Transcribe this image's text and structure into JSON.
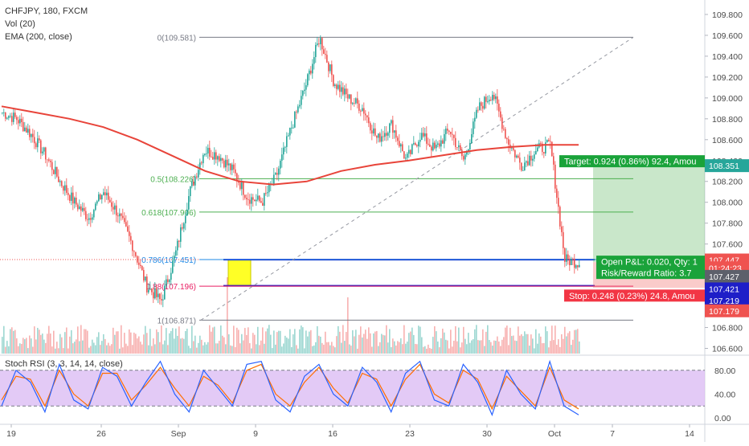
{
  "legend": {
    "title": "CHFJPY, 180, FXCM",
    "vol": "Vol (20)",
    "ema": "EMA (200, close)",
    "rsi": "Stoch RSI (3, 3, 14, 14, close)"
  },
  "colors": {
    "up": "#26a69a",
    "down": "#ef5350",
    "ema": "#e8443a",
    "fib_green": "#4caf50",
    "fib_red": "#e91e63",
    "fib_gray": "#787b86",
    "blue": "#1e1ec8",
    "rsi_band": "#d9b8f3",
    "rsi_k": "#2962ff",
    "rsi_d": "#ff6d00"
  },
  "price_axis": {
    "ticks": [
      "109.800",
      "109.600",
      "109.400",
      "109.200",
      "109.000",
      "108.800",
      "108.600",
      "108.400",
      "108.200",
      "108.000",
      "107.800",
      "107.600",
      "107.400",
      "107.200",
      "107.000",
      "106.800",
      "106.600"
    ],
    "labels": [
      {
        "text": "108.351",
        "bg": "#26a69a",
        "price": 108.351
      },
      {
        "text": "107.447",
        "bg": "#ef5350",
        "price": 107.447
      },
      {
        "text": "01:24:23",
        "bg": "#ef5350",
        "price": 107.372
      },
      {
        "text": "107.427",
        "bg": "#5d606b",
        "price": 107.29
      },
      {
        "text": "107.421",
        "bg": "#1e1ec8",
        "price": 107.17
      },
      {
        "text": "107.219",
        "bg": "#1e1ec8",
        "price": 107.06
      },
      {
        "text": "107.179",
        "bg": "#ef5350",
        "price": 106.96
      }
    ]
  },
  "rsi_axis": {
    "ticks": [
      "80.00",
      "40.00",
      "0.00"
    ]
  },
  "time_axis": {
    "ticks": [
      {
        "label": "19",
        "bar": 6
      },
      {
        "label": "26",
        "bar": 62
      },
      {
        "label": "Sep",
        "bar": 110
      },
      {
        "label": "9",
        "bar": 158
      },
      {
        "label": "16",
        "bar": 206
      },
      {
        "label": "23",
        "bar": 254
      },
      {
        "label": "30",
        "bar": 302
      },
      {
        "label": "Oct",
        "bar": 344
      },
      {
        "label": "7",
        "bar": 380
      },
      {
        "label": "14",
        "bar": 428
      }
    ]
  },
  "fib": [
    {
      "label": "0(109.581)",
      "price": 109.581,
      "color": "#787b86"
    },
    {
      "label": "0.5(108.226)",
      "price": 108.226,
      "color": "#4caf50"
    },
    {
      "label": "0.618(107.906)",
      "price": 107.906,
      "color": "#4caf50"
    },
    {
      "label": "0.786(107.451)",
      "price": 107.451,
      "color": "#1e88e5"
    },
    {
      "label": "0.88(107.196)",
      "price": 107.196,
      "color": "#e91e63"
    },
    {
      "label": "1(106.871)",
      "price": 106.871,
      "color": "#787b86"
    }
  ],
  "position": {
    "target_label": "Target: 0.924 (0.86%) 92.4, Amou",
    "pnl_label": "Open P&L: 0.020, Qty: 1",
    "rr_label": "Risk/Reward Ratio: 3.7",
    "stop_label": "Stop: 0.248 (0.23%) 24.8, Amou",
    "entry": 107.427,
    "target": 108.351,
    "stop": 107.179
  },
  "chart_data": {
    "type": "line",
    "title": "CHFJPY, 180, FXCM",
    "ylim": [
      106.55,
      109.9
    ],
    "series": [
      {
        "name": "EMA (200, close)",
        "values": [
          108.92,
          108.86,
          108.8,
          108.72,
          108.6,
          108.45,
          108.3,
          108.2,
          108.17,
          108.2,
          108.3,
          108.36,
          108.4,
          108.45,
          108.5,
          108.53,
          108.55,
          108.55
        ]
      }
    ],
    "price_path": [
      108.86,
      108.8,
      108.65,
      108.45,
      108.2,
      108.0,
      107.85,
      108.1,
      107.9,
      107.6,
      107.2,
      107.05,
      107.5,
      108.1,
      108.5,
      108.45,
      108.3,
      108.05,
      108.0,
      108.25,
      108.7,
      109.1,
      109.58,
      109.15,
      109.0,
      108.9,
      108.6,
      108.75,
      108.4,
      108.65,
      108.5,
      108.7,
      108.4,
      108.9,
      109.05,
      108.6,
      108.35,
      108.5,
      108.55,
      107.45,
      107.42
    ],
    "stoch_rsi_k": [
      20,
      80,
      60,
      10,
      90,
      30,
      15,
      85,
      70,
      20,
      60,
      95,
      40,
      10,
      80,
      50,
      20,
      90,
      95,
      30,
      10,
      70,
      90,
      40,
      20,
      85,
      60,
      10,
      75,
      95,
      30,
      20,
      90,
      60,
      5,
      80,
      40,
      15,
      95,
      20,
      5
    ],
    "stoch_rsi_d": [
      30,
      70,
      65,
      20,
      80,
      40,
      20,
      75,
      75,
      30,
      55,
      85,
      50,
      20,
      70,
      55,
      25,
      80,
      90,
      40,
      20,
      60,
      85,
      50,
      25,
      75,
      65,
      20,
      65,
      90,
      40,
      25,
      80,
      65,
      15,
      70,
      45,
      20,
      85,
      30,
      15
    ]
  }
}
